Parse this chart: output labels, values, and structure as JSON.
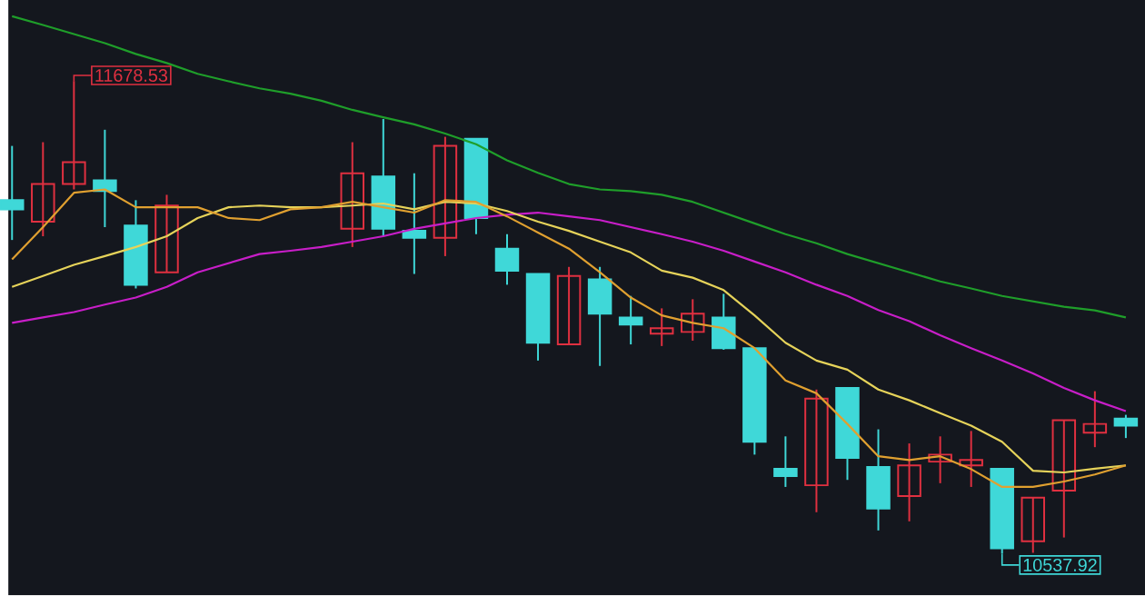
{
  "chart_data": {
    "type": "candlestick",
    "categories": [
      null,
      null,
      null,
      null,
      null,
      null,
      null,
      null,
      null,
      null,
      null,
      null,
      null,
      null,
      null,
      null,
      null,
      null,
      null,
      null,
      null,
      null,
      null,
      null,
      null,
      null,
      null,
      null,
      null,
      null,
      null,
      null,
      null,
      null,
      null,
      null,
      null
    ],
    "ohlc": [
      [
        11391,
        11522,
        11295,
        11369
      ],
      [
        11339,
        11531,
        11304,
        11430
      ],
      [
        11430,
        11678.53,
        11417,
        11483
      ],
      [
        11439,
        11561,
        11326,
        11413
      ],
      [
        11330,
        11391,
        11178,
        11187
      ],
      [
        11217,
        11404,
        11217,
        11378
      ],
      null,
      null,
      null,
      null,
      null,
      [
        11322,
        11531,
        11278,
        11456
      ],
      [
        11448,
        11587,
        11304,
        11322
      ],
      [
        11317,
        11456,
        11213,
        11300
      ],
      [
        11300,
        11544,
        11256,
        11522
      ],
      [
        11539,
        11539,
        11309,
        11348
      ],
      [
        11274,
        11309,
        11187,
        11221
      ],
      [
        11213,
        11213,
        11004,
        11047
      ],
      [
        11043,
        11230,
        11043,
        11208
      ],
      [
        11200,
        11230,
        10991,
        11117
      ],
      [
        11108,
        11160,
        11043,
        11091
      ],
      [
        11069,
        11130,
        11039,
        11082
      ],
      [
        11073,
        11152,
        11052,
        11117
      ],
      [
        11108,
        11165,
        11030,
        11034
      ],
      [
        11034,
        11034,
        10777,
        10808
      ],
      [
        10743,
        10821,
        10699,
        10725
      ],
      [
        10703,
        10934,
        10638,
        10912
      ],
      [
        10938,
        10938,
        10716,
        10769
      ],
      [
        10747,
        10838,
        10594,
        10647
      ],
      [
        10677,
        10804,
        10616,
        10751
      ],
      [
        10760,
        10821,
        10708,
        10777
      ],
      [
        10751,
        10834,
        10699,
        10764
      ],
      [
        10743,
        10743,
        10537.92,
        10551
      ],
      [
        10568,
        10673,
        10540,
        10673
      ],
      [
        10690,
        10860,
        10577,
        10860
      ],
      [
        10830,
        10930,
        10795,
        10851
      ],
      [
        10864,
        10873,
        10817,
        10847
      ]
    ],
    "series": [
      {
        "type": "line",
        "color": "#1f9e2a",
        "values": [
          11835,
          11814,
          11792,
          11770,
          11744,
          11722,
          11696,
          11678,
          11661,
          11648,
          11631,
          11609,
          11591,
          11574,
          11552,
          11526,
          11487,
          11457,
          11430,
          11417,
          11413,
          11404,
          11387,
          11361,
          11335,
          11309,
          11287,
          11261,
          11239,
          11217,
          11195,
          11178,
          11160,
          11147,
          11134,
          11125,
          11108
        ]
      },
      {
        "type": "line",
        "color": "#c81ec8",
        "values": [
          11095,
          11108,
          11121,
          11139,
          11156,
          11182,
          11217,
          11239,
          11261,
          11269,
          11278,
          11291,
          11304,
          11322,
          11335,
          11348,
          11356,
          11361,
          11352,
          11343,
          11326,
          11309,
          11291,
          11269,
          11243,
          11217,
          11187,
          11160,
          11126,
          11099,
          11065,
          11034,
          11004,
          10973,
          10938,
          10908,
          10882
        ]
      },
      {
        "type": "line",
        "color": "#e6d35a",
        "values": [
          11182,
          11208,
          11235,
          11256,
          11278,
          11304,
          11348,
          11374,
          11378,
          11374,
          11374,
          11378,
          11383,
          11369,
          11387,
          11383,
          11365,
          11339,
          11317,
          11291,
          11265,
          11221,
          11204,
          11174,
          11113,
          11047,
          11004,
          10982,
          10934,
          10908,
          10877,
          10847,
          10808,
          10738,
          10734,
          10743,
          10751
        ]
      },
      {
        "type": "line",
        "color": "#e0a030",
        "values": [
          11248,
          11326,
          11409,
          11417,
          11374,
          11374,
          11374,
          11348,
          11343,
          11369,
          11374,
          11387,
          11374,
          11361,
          11391,
          11387,
          11352,
          11313,
          11274,
          11217,
          11156,
          11113,
          11095,
          11082,
          11034,
          10956,
          10925,
          10851,
          10773,
          10764,
          10773,
          10742,
          10699,
          10699,
          10712,
          10729,
          10751
        ]
      }
    ],
    "annotations": [
      "11678.53",
      "10537.92"
    ]
  }
}
